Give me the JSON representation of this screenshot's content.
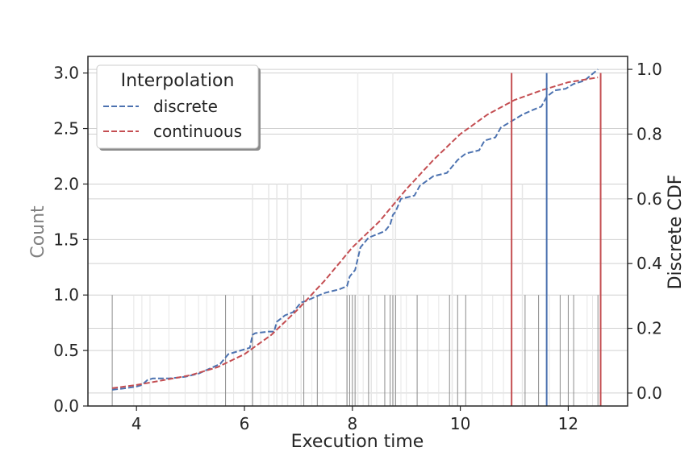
{
  "chart_data": {
    "type": "line",
    "xlabel": "Execution time",
    "ylabel_left": "Count",
    "ylabel_right": "Discrete CDF",
    "xlim": [
      3.1,
      13.1
    ],
    "ylim_left": [
      0,
      3.15
    ],
    "ylim_right": [
      -0.04,
      1.04
    ],
    "x_ticks": [
      4,
      6,
      8,
      10,
      12
    ],
    "y_ticks_left": [
      "0.0",
      "0.5",
      "1.0",
      "1.5",
      "2.0",
      "2.5",
      "3.0"
    ],
    "y_ticks_right": [
      "0.0",
      "0.2",
      "0.4",
      "0.6",
      "0.8",
      "1.0"
    ],
    "y_tick_values_left": [
      0,
      0.5,
      1.0,
      1.5,
      2.0,
      2.5,
      3.0
    ],
    "y_tick_values_right": [
      0,
      0.2,
      0.4,
      0.6,
      0.8,
      1.0
    ],
    "grid": true,
    "legend": {
      "title": "Interpolation",
      "position": "top-left",
      "entries": [
        {
          "name": "discrete",
          "color": "#4c72b0"
        },
        {
          "name": "continuous",
          "color": "#c44e52"
        }
      ]
    },
    "rug_dark": {
      "color": "#8c8c8c",
      "height": 1,
      "x": [
        3.55,
        5.65,
        6.15,
        7.1,
        7.35,
        7.9,
        7.95,
        8.0,
        8.05,
        8.3,
        8.6,
        8.7,
        8.75,
        8.8,
        9.2,
        9.8,
        9.95,
        10.1,
        10.95,
        11.2,
        11.45,
        11.85,
        12.0,
        12.1,
        12.55
      ]
    },
    "rug_light": {
      "color": "#e6e6e6",
      "height": 2,
      "x": [
        6.15,
        6.45,
        6.6,
        6.8,
        7.05,
        7.9,
        8.1,
        8.35,
        8.8,
        9.85,
        10.4,
        11.15
      ]
    },
    "rug_light_tall": {
      "color": "#ececec",
      "height": 3,
      "x": [
        8.1,
        8.75
      ]
    },
    "rug_faint": {
      "color": "#e6e6e6",
      "height": 1,
      "x": [
        3.95,
        4.1,
        4.25,
        4.6,
        4.9,
        5.15,
        5.3,
        5.45,
        5.8,
        6.0,
        6.3,
        6.55,
        6.7,
        6.95,
        7.25,
        7.45,
        7.7,
        8.2,
        8.45,
        8.9,
        9.0,
        9.4,
        9.6,
        10.6,
        10.8,
        11.65,
        12.35,
        12.45
      ]
    },
    "series": [
      {
        "name": "discrete",
        "color": "#4c72b0",
        "axis": "right",
        "dash": "dashed",
        "x": [
          3.55,
          3.8,
          4.0,
          4.1,
          4.2,
          4.3,
          4.6,
          4.9,
          5.15,
          5.35,
          5.55,
          5.65,
          5.7,
          5.9,
          6.1,
          6.15,
          6.2,
          6.45,
          6.55,
          6.6,
          6.75,
          6.9,
          7.05,
          7.15,
          7.35,
          7.5,
          7.75,
          7.9,
          7.95,
          8.0,
          8.05,
          8.15,
          8.3,
          8.45,
          8.6,
          8.7,
          8.75,
          8.8,
          8.9,
          9.15,
          9.25,
          9.5,
          9.75,
          9.95,
          10.1,
          10.35,
          10.45,
          10.65,
          10.75,
          10.9,
          11.0,
          11.15,
          11.35,
          11.5,
          11.6,
          11.75,
          11.95,
          12.1,
          12.3,
          12.55
        ],
        "y": [
          0.01,
          0.015,
          0.02,
          0.025,
          0.04,
          0.045,
          0.045,
          0.05,
          0.06,
          0.075,
          0.09,
          0.11,
          0.12,
          0.13,
          0.14,
          0.18,
          0.185,
          0.19,
          0.19,
          0.22,
          0.24,
          0.25,
          0.28,
          0.285,
          0.3,
          0.31,
          0.32,
          0.33,
          0.36,
          0.37,
          0.38,
          0.45,
          0.48,
          0.49,
          0.5,
          0.52,
          0.55,
          0.56,
          0.6,
          0.61,
          0.64,
          0.67,
          0.68,
          0.72,
          0.74,
          0.75,
          0.78,
          0.79,
          0.82,
          0.835,
          0.845,
          0.86,
          0.875,
          0.885,
          0.915,
          0.935,
          0.94,
          0.955,
          0.965,
          1.0
        ]
      },
      {
        "name": "continuous",
        "color": "#c44e52",
        "axis": "right",
        "dash": "dashed",
        "x": [
          3.55,
          4.0,
          4.5,
          5.0,
          5.5,
          6.0,
          6.5,
          7.0,
          7.5,
          8.0,
          8.5,
          9.0,
          9.5,
          10.0,
          10.5,
          11.0,
          11.5,
          12.0,
          12.55
        ],
        "y": [
          0.015,
          0.025,
          0.04,
          0.055,
          0.08,
          0.12,
          0.18,
          0.26,
          0.35,
          0.45,
          0.53,
          0.63,
          0.72,
          0.8,
          0.86,
          0.905,
          0.935,
          0.96,
          0.975
        ]
      }
    ],
    "vlines": [
      {
        "x": 10.95,
        "color": "#c44e52"
      },
      {
        "x": 11.6,
        "color": "#4c72b0"
      },
      {
        "x": 12.6,
        "color": "#c44e52"
      }
    ]
  }
}
